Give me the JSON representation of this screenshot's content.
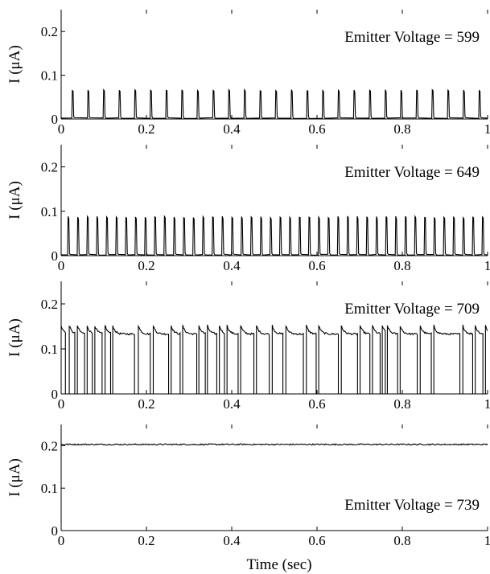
{
  "chart_data": [
    {
      "type": "line",
      "annotation": "Emitter Voltage = 599",
      "ylabel": "I (μA)",
      "xlabel": "",
      "xlim": [
        0,
        1
      ],
      "ylim": [
        0,
        0.25
      ],
      "xticks": [
        "0",
        "0.2",
        "0.4",
        "0.6",
        "0.8",
        "1"
      ],
      "yticks": [
        "0",
        "0.1",
        "0.2"
      ],
      "grid": false,
      "signal": {
        "kind": "spikes",
        "baseline": 0.002,
        "peak": 0.067,
        "period": 0.0367,
        "first": 0.028,
        "width": 0.006
      }
    },
    {
      "type": "line",
      "annotation": "Emitter Voltage = 649",
      "ylabel": "I (μA)",
      "xlabel": "",
      "xlim": [
        0,
        1
      ],
      "ylim": [
        0,
        0.25
      ],
      "xticks": [
        "0",
        "0.2",
        "0.4",
        "0.6",
        "0.8",
        "1"
      ],
      "yticks": [
        "0",
        "0.1",
        "0.2"
      ],
      "grid": false,
      "signal": {
        "kind": "spikes",
        "baseline": 0.002,
        "peak": 0.089,
        "period": 0.0226,
        "first": 0.018,
        "width": 0.006
      }
    },
    {
      "type": "line",
      "annotation": "Emitter Voltage = 709",
      "ylabel": "I (μA)",
      "xlabel": "",
      "xlim": [
        0,
        1
      ],
      "ylim": [
        0,
        0.25
      ],
      "xticks": [
        "0",
        "0.2",
        "0.4",
        "0.6",
        "0.8",
        "1"
      ],
      "yticks": [
        "0",
        "0.1",
        "0.2"
      ],
      "grid": false,
      "signal": {
        "kind": "telegraph",
        "high": 0.133,
        "peak": 0.152,
        "low": 0.0,
        "low_intervals": [
          [
            0.01,
            0.019
          ],
          [
            0.032,
            0.038
          ],
          [
            0.055,
            0.061
          ],
          [
            0.073,
            0.079
          ],
          [
            0.096,
            0.103
          ],
          [
            0.116,
            0.121
          ],
          [
            0.172,
            0.181
          ],
          [
            0.209,
            0.216
          ],
          [
            0.252,
            0.258
          ],
          [
            0.279,
            0.285
          ],
          [
            0.318,
            0.323
          ],
          [
            0.338,
            0.343
          ],
          [
            0.365,
            0.371
          ],
          [
            0.383,
            0.389
          ],
          [
            0.415,
            0.421
          ],
          [
            0.452,
            0.458
          ],
          [
            0.488,
            0.495
          ],
          [
            0.52,
            0.527
          ],
          [
            0.568,
            0.575
          ],
          [
            0.598,
            0.604
          ],
          [
            0.65,
            0.657
          ],
          [
            0.695,
            0.701
          ],
          [
            0.724,
            0.73
          ],
          [
            0.748,
            0.753
          ],
          [
            0.76,
            0.765
          ],
          [
            0.789,
            0.795
          ],
          [
            0.835,
            0.842
          ],
          [
            0.868,
            0.874
          ],
          [
            0.935,
            0.942
          ],
          [
            0.965,
            0.971
          ],
          [
            0.989,
            0.995
          ]
        ]
      }
    },
    {
      "type": "line",
      "annotation": "Emitter Voltage = 739",
      "ylabel": "I (μA)",
      "xlabel": "Time (sec)",
      "xlim": [
        0,
        1
      ],
      "ylim": [
        0,
        0.25
      ],
      "xticks": [
        "0",
        "0.2",
        "0.4",
        "0.6",
        "0.8",
        "1"
      ],
      "yticks": [
        "0",
        "0.1",
        "0.2"
      ],
      "grid": false,
      "signal": {
        "kind": "constant",
        "level": 0.203,
        "noise": 0.0015
      }
    }
  ],
  "colors": {
    "line": "#000000",
    "axes": "#000000",
    "background": "#ffffff"
  }
}
